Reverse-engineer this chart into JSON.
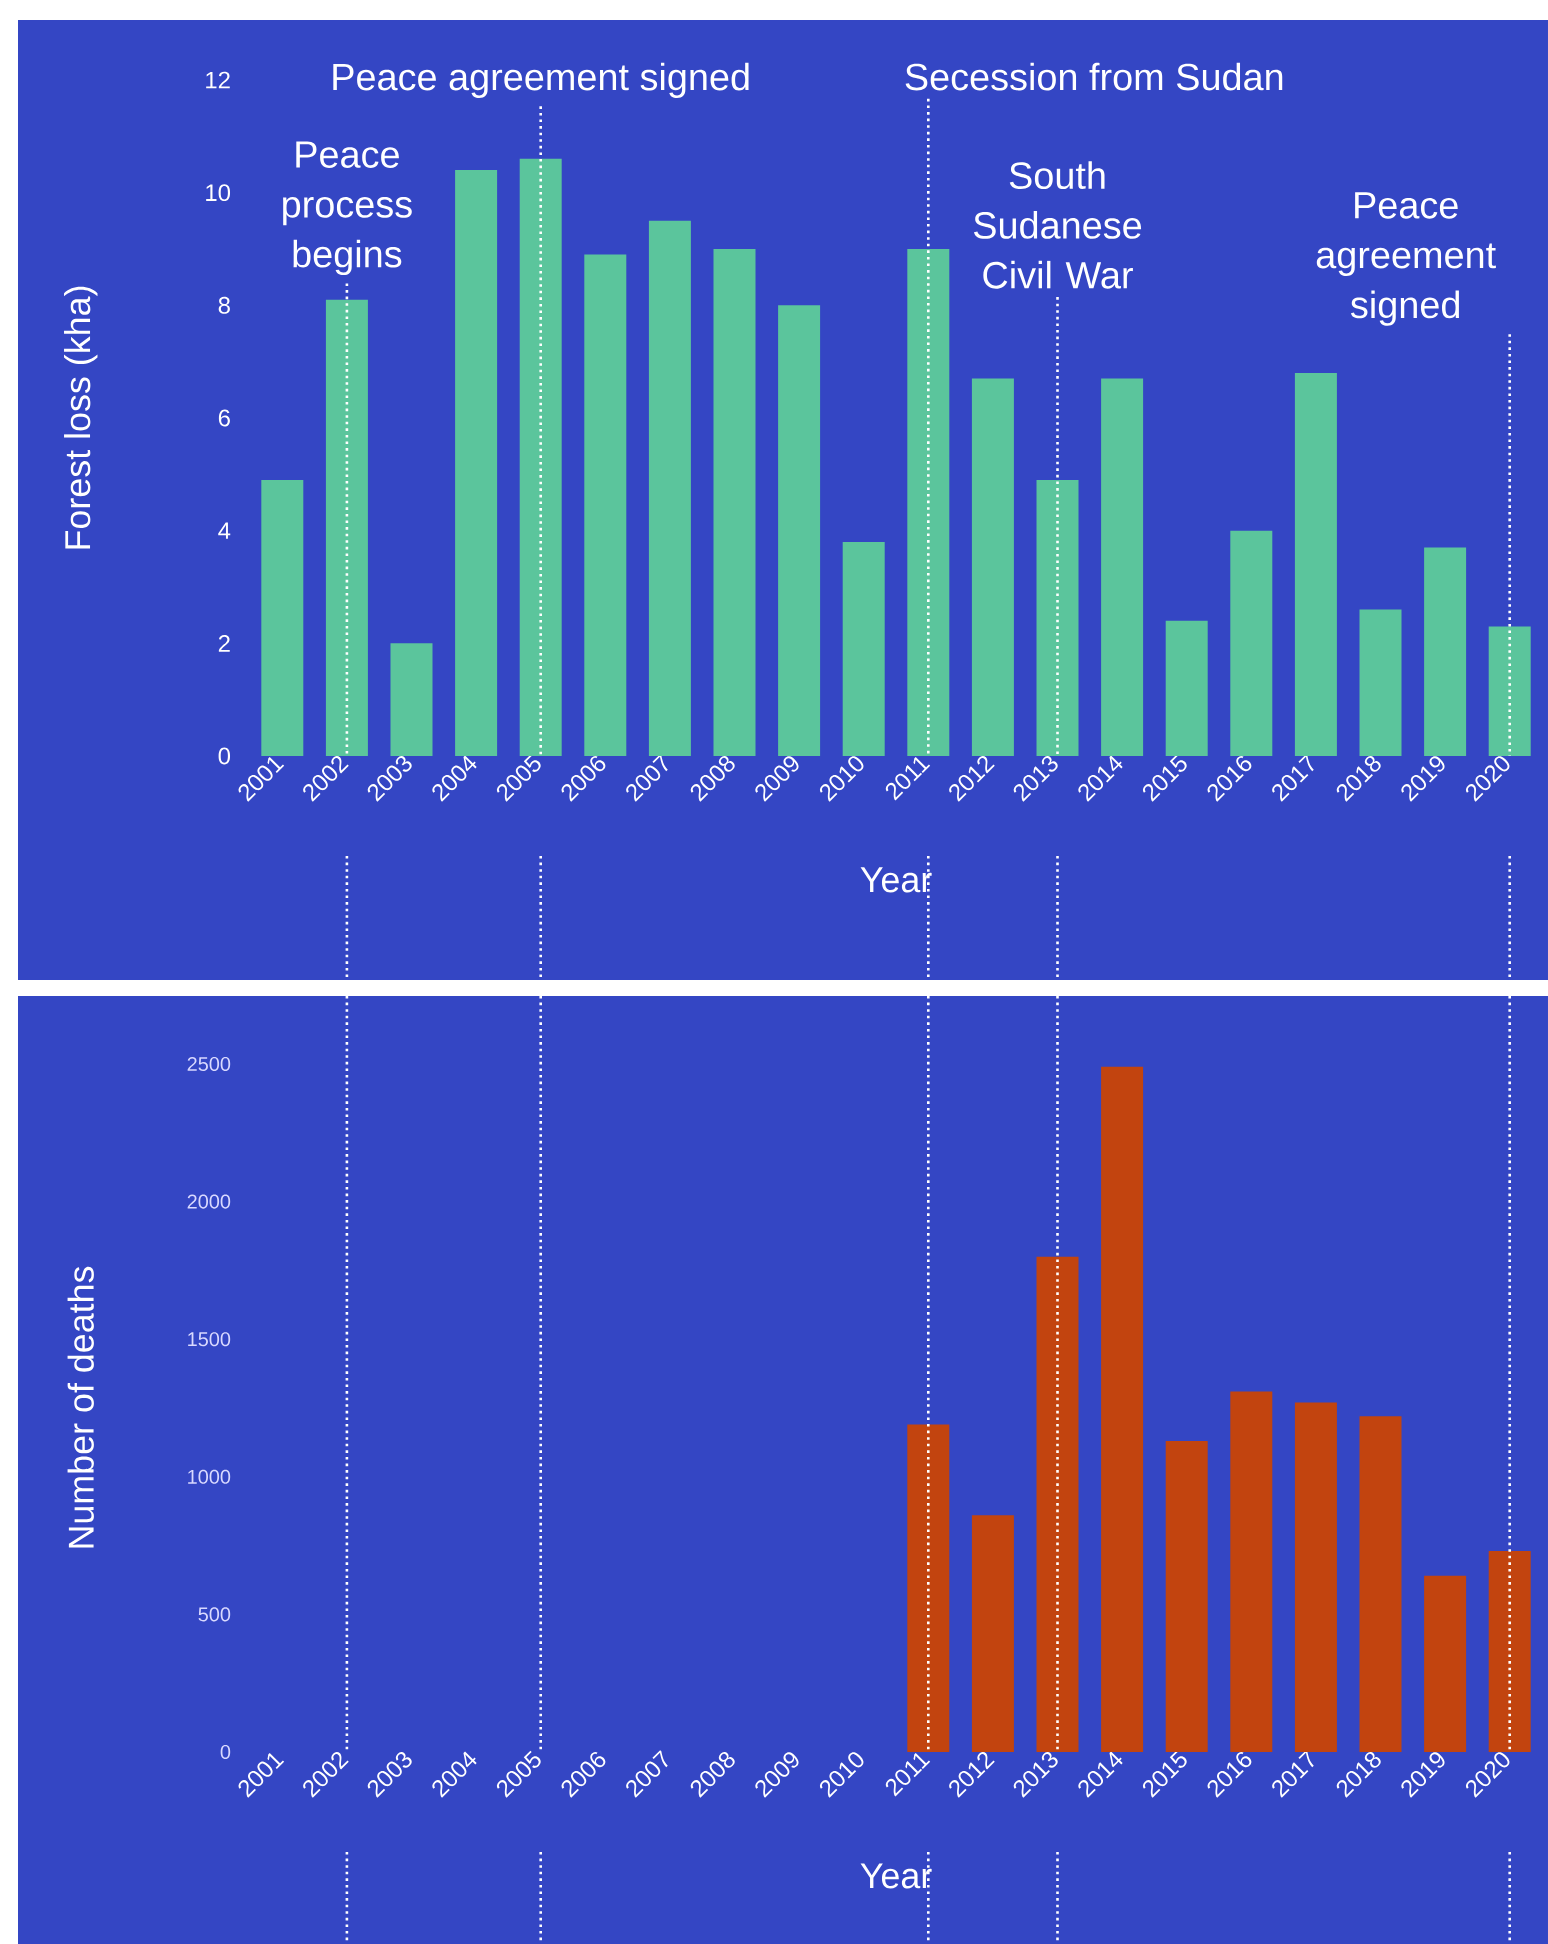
{
  "chart_data": [
    {
      "type": "bar",
      "categories": [
        "2001",
        "2002",
        "2003",
        "2004",
        "2005",
        "2006",
        "2007",
        "2008",
        "2009",
        "2010",
        "2011",
        "2012",
        "2013",
        "2014",
        "2015",
        "2016",
        "2017",
        "2018",
        "2019",
        "2020"
      ],
      "values": [
        4.9,
        8.1,
        2.0,
        10.4,
        10.6,
        8.9,
        9.5,
        9.0,
        8.0,
        3.8,
        9.0,
        6.7,
        4.9,
        6.7,
        2.4,
        4.0,
        6.8,
        2.6,
        3.7,
        2.3
      ],
      "color": "#5bc59c",
      "xlabel": "Year",
      "ylabel": "Forest loss (kha)",
      "ylim": [
        0,
        12
      ],
      "yticks": [
        0,
        2,
        4,
        6,
        8,
        10,
        12
      ],
      "ref_lines": [
        {
          "axis": "x",
          "value": "2002",
          "label": "Peace process begins"
        },
        {
          "axis": "x",
          "value": "2005",
          "label": "Peace agreement signed"
        },
        {
          "axis": "x",
          "value": "2011",
          "label": "Secession from Sudan"
        },
        {
          "axis": "x",
          "value": "2013",
          "label": "South Sudanese Civil War"
        },
        {
          "axis": "x",
          "value": "2020",
          "label": "Peace agreement signed"
        }
      ]
    },
    {
      "type": "bar",
      "categories": [
        "2001",
        "2002",
        "2003",
        "2004",
        "2005",
        "2006",
        "2007",
        "2008",
        "2009",
        "2010",
        "2011",
        "2012",
        "2013",
        "2014",
        "2015",
        "2016",
        "2017",
        "2018",
        "2019",
        "2020"
      ],
      "values": [
        null,
        null,
        null,
        null,
        null,
        null,
        null,
        null,
        null,
        null,
        1190,
        860,
        1800,
        2490,
        1130,
        1310,
        1270,
        1220,
        640,
        730
      ],
      "color": "#c2440f",
      "xlabel": "Year",
      "ylabel": "Number of deaths",
      "ylim": [
        0,
        2500
      ],
      "yticks": [
        0,
        500,
        1000,
        1500,
        2000,
        2500
      ],
      "ref_lines": [
        {
          "axis": "x",
          "value": "2002"
        },
        {
          "axis": "x",
          "value": "2005"
        },
        {
          "axis": "x",
          "value": "2011"
        },
        {
          "axis": "x",
          "value": "2013"
        },
        {
          "axis": "x",
          "value": "2020"
        }
      ]
    }
  ]
}
